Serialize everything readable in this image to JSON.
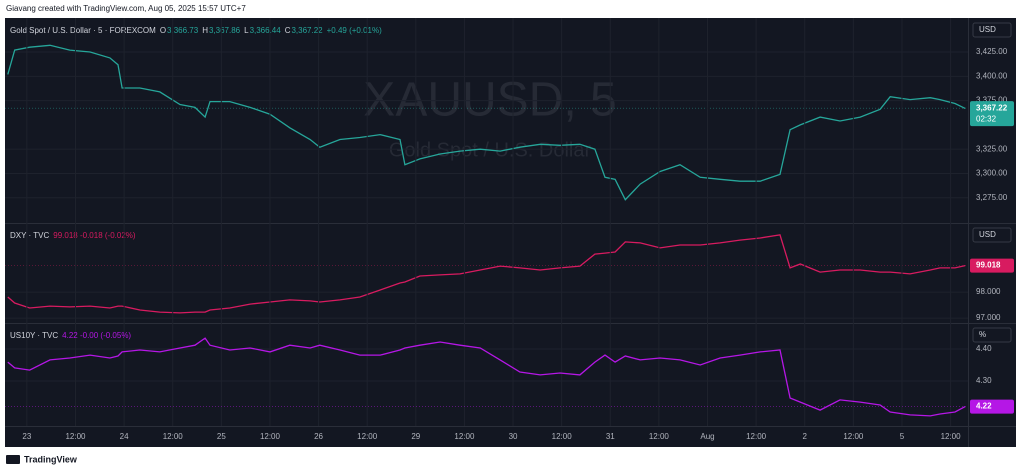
{
  "header": "Giavang created with TradingView.com, Aug 05, 2025 15:57 UTC+7",
  "footer": "TradingView",
  "chart_data": [
    {
      "type": "line",
      "unit": "USD",
      "legend_title": "Gold Spot / U.S. Dollar · 5 · FOREXCOM",
      "legend_values": [
        {
          "label": "O",
          "value": "3,366.73"
        },
        {
          "label": "H",
          "value": "3,367.86"
        },
        {
          "label": "L",
          "value": "3,366.44"
        },
        {
          "label": "C",
          "value": "3,367.22"
        }
      ],
      "legend_change": "+0.49 (+0.01%)",
      "watermark": [
        "XAUUSD, 5",
        "Gold Spot / U.S. Dollar"
      ],
      "countdown": "02:32",
      "last": {
        "value": 3367.22,
        "label": "3,367.22"
      },
      "xlim": [
        -5.4,
        232.3
      ],
      "x": [
        -4.7,
        -3.0,
        0.7,
        5.7,
        10.6,
        15.6,
        20.5,
        22.5,
        23.5,
        27.9,
        32.8,
        37.8,
        41.5,
        44.0,
        45.2,
        50.1,
        55.1,
        60.0,
        64.9,
        69.9,
        72.3,
        77.3,
        82.2,
        87.2,
        92.1,
        93.3,
        97.0,
        102.0,
        106.9,
        111.9,
        116.8,
        121.7,
        126.7,
        131.6,
        136.5,
        140.2,
        142.7,
        145.2,
        147.7,
        151.4,
        156.3,
        161.2,
        166.2,
        171.1,
        176.0,
        181.0,
        185.9,
        188.4,
        190.9,
        195.8,
        200.7,
        205.7,
        210.6,
        213.1,
        218.0,
        223.0,
        225.4,
        229.1,
        231.6
      ],
      "series": [
        {
          "name": "XAUUSD",
          "color": "#26a69a",
          "values": [
            3402,
            3427,
            3430,
            3432,
            3427,
            3425,
            3419,
            3412,
            3388,
            3388,
            3384,
            3371,
            3368,
            3358,
            3374,
            3374,
            3368,
            3361,
            3347,
            3335,
            3327,
            3335,
            3337,
            3340,
            3335,
            3309,
            3315,
            3320,
            3323,
            3325,
            3323,
            3327,
            3330,
            3329,
            3330,
            3325,
            3296,
            3294,
            3273,
            3289,
            3302,
            3309,
            3296,
            3294,
            3292,
            3292,
            3299,
            3345,
            3350,
            3358,
            3354,
            3358,
            3366,
            3379,
            3376,
            3378,
            3376,
            3372,
            3367
          ]
        }
      ],
      "ylim": [
        3250,
        3458
      ],
      "yticks": [
        {
          "value": 3275,
          "label": "3,275.00"
        },
        {
          "value": 3300,
          "label": "3,300.00"
        },
        {
          "value": 3325,
          "label": "3,325.00"
        },
        {
          "value": 3375,
          "label": "3,375.00"
        },
        {
          "value": 3400,
          "label": "3,400.00"
        },
        {
          "value": 3425,
          "label": "3,425.00"
        }
      ]
    },
    {
      "type": "line",
      "unit": "USD",
      "legend_title": "DXY · TVC",
      "legend_change": "99.018 -0.018 (-0.02%)",
      "last": 99.018,
      "xlim": [
        -5.4,
        232.3
      ],
      "x": [
        -4.7,
        -3.0,
        0.7,
        5.7,
        10.6,
        15.6,
        20.5,
        22.5,
        23.5,
        27.9,
        32.8,
        37.8,
        41.5,
        44.0,
        45.2,
        50.1,
        55.1,
        60.0,
        64.9,
        69.9,
        72.3,
        77.3,
        82.2,
        87.2,
        92.1,
        93.3,
        97.0,
        102.0,
        106.9,
        111.9,
        116.8,
        121.7,
        126.7,
        131.6,
        136.5,
        140.2,
        142.7,
        145.2,
        147.7,
        151.4,
        156.3,
        161.2,
        166.2,
        171.1,
        176.0,
        181.0,
        185.9,
        188.4,
        190.9,
        195.8,
        200.7,
        205.7,
        210.6,
        213.1,
        218.0,
        223.0,
        225.4,
        229.1,
        231.6
      ],
      "series": [
        {
          "name": "DXY",
          "color": "#d81b60",
          "values": [
            97.81,
            97.58,
            97.39,
            97.46,
            97.43,
            97.46,
            97.39,
            97.46,
            97.46,
            97.31,
            97.23,
            97.2,
            97.23,
            97.23,
            97.31,
            97.39,
            97.54,
            97.62,
            97.7,
            97.66,
            97.62,
            97.7,
            97.81,
            98.08,
            98.35,
            98.39,
            98.62,
            98.66,
            98.7,
            98.85,
            99.0,
            98.93,
            98.85,
            98.93,
            99.0,
            99.46,
            99.5,
            99.54,
            99.93,
            99.89,
            99.7,
            99.81,
            99.81,
            99.89,
            100.0,
            100.08,
            100.2,
            98.93,
            99.08,
            98.77,
            98.85,
            98.85,
            98.77,
            98.77,
            98.7,
            98.85,
            98.93,
            98.93,
            99.018
          ]
        }
      ],
      "ylim": [
        96.85,
        100.58
      ],
      "yticks": [
        {
          "value": 97,
          "label": "97.000"
        },
        {
          "value": 98,
          "label": "98.000"
        }
      ]
    },
    {
      "type": "line",
      "unit": "%",
      "legend_title": "US10Y · TVC",
      "legend_change": "4.22 -0.00 (-0.05%)",
      "last": 4.22,
      "xlim": [
        -5.4,
        232.3
      ],
      "x": [
        -4.7,
        -3.0,
        0.7,
        5.7,
        10.6,
        15.6,
        20.5,
        22.5,
        23.5,
        27.9,
        32.8,
        37.8,
        41.5,
        44.0,
        45.2,
        50.1,
        55.1,
        60.0,
        64.9,
        69.9,
        72.3,
        77.3,
        82.2,
        87.2,
        92.1,
        93.3,
        97.0,
        102.0,
        106.9,
        111.9,
        116.8,
        121.7,
        126.7,
        131.6,
        136.5,
        140.2,
        142.7,
        145.2,
        147.7,
        151.4,
        156.3,
        161.2,
        166.2,
        171.1,
        176.0,
        181.0,
        185.9,
        188.4,
        190.9,
        195.8,
        200.7,
        205.7,
        210.6,
        213.1,
        218.0,
        223.0,
        225.4,
        229.1,
        231.6
      ],
      "series": [
        {
          "name": "US10Y",
          "color": "#b517e6",
          "values": [
            4.359,
            4.341,
            4.334,
            4.366,
            4.372,
            4.381,
            4.372,
            4.378,
            4.391,
            4.397,
            4.391,
            4.403,
            4.412,
            4.434,
            4.412,
            4.397,
            4.403,
            4.391,
            4.412,
            4.403,
            4.412,
            4.397,
            4.381,
            4.381,
            4.397,
            4.403,
            4.412,
            4.422,
            4.412,
            4.403,
            4.366,
            4.328,
            4.319,
            4.325,
            4.319,
            4.359,
            4.381,
            4.359,
            4.378,
            4.366,
            4.372,
            4.366,
            4.35,
            4.372,
            4.381,
            4.391,
            4.397,
            4.247,
            4.234,
            4.209,
            4.241,
            4.234,
            4.225,
            4.203,
            4.194,
            4.191,
            4.197,
            4.203,
            4.22
          ]
        }
      ],
      "ylim": [
        4.1625,
        4.475
      ],
      "yticks": [
        {
          "value": 4.3,
          "label": "4.30"
        },
        {
          "value": 4.4,
          "label": "4.40"
        }
      ],
      "xticks": [
        {
          "value": 0,
          "label": "23"
        },
        {
          "value": 12,
          "label": "12:00"
        },
        {
          "value": 24,
          "label": "24"
        },
        {
          "value": 36,
          "label": "12:00"
        },
        {
          "value": 48,
          "label": "25"
        },
        {
          "value": 60,
          "label": "12:00"
        },
        {
          "value": 72,
          "label": "26"
        },
        {
          "value": 84,
          "label": "12:00"
        },
        {
          "value": 96,
          "label": "29"
        },
        {
          "value": 108,
          "label": "12:00"
        },
        {
          "value": 120,
          "label": "30"
        },
        {
          "value": 132,
          "label": "12:00"
        },
        {
          "value": 144,
          "label": "31"
        },
        {
          "value": 156,
          "label": "12:00"
        },
        {
          "value": 168,
          "label": "Aug"
        },
        {
          "value": 180,
          "label": "12:00"
        },
        {
          "value": 192,
          "label": "2"
        },
        {
          "value": 204,
          "label": "12:00"
        },
        {
          "value": 216,
          "label": "5"
        },
        {
          "value": 228,
          "label": "12:00"
        }
      ]
    }
  ]
}
